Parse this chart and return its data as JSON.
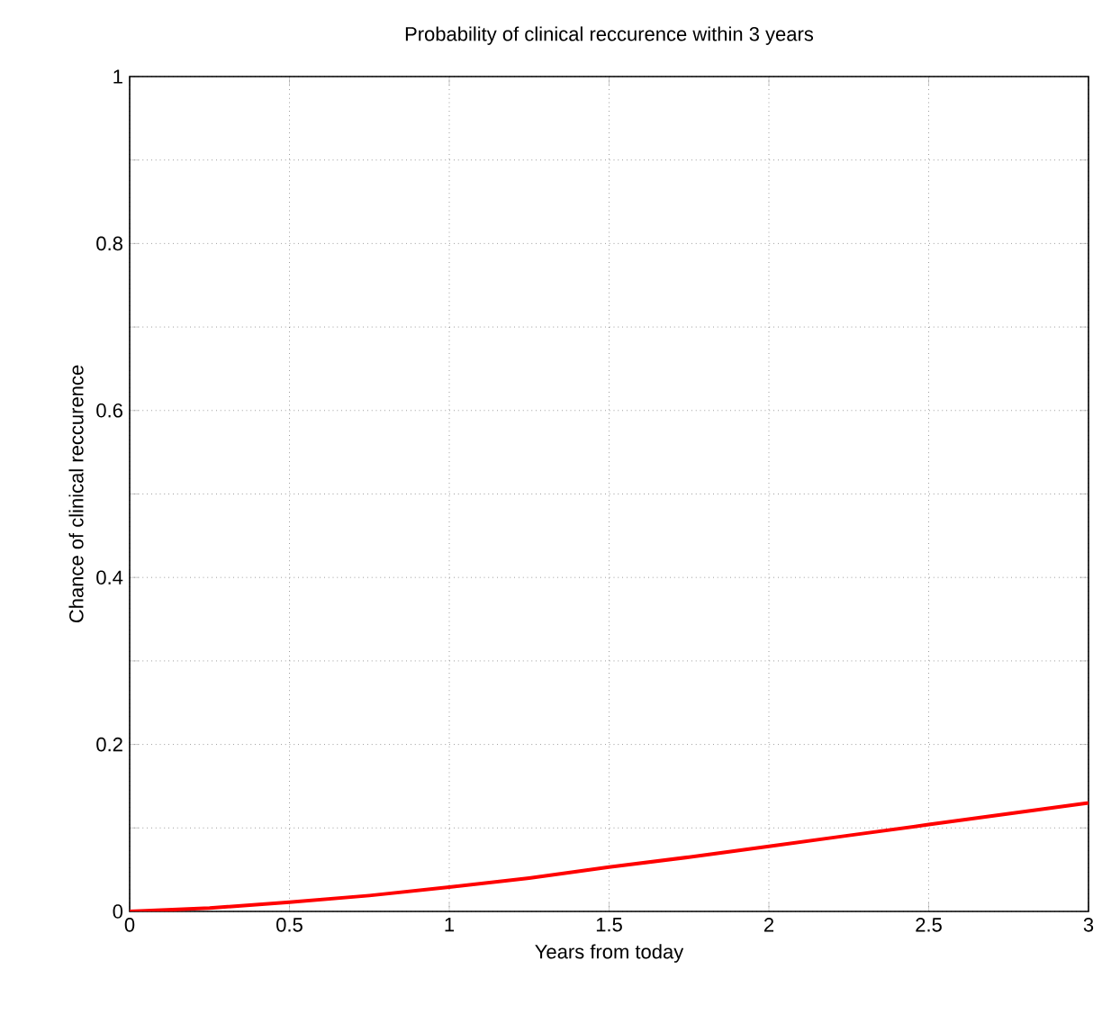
{
  "chart_data": {
    "type": "line",
    "title": "Probability of clinical reccurence within 3 years",
    "xlabel": "Years from today",
    "ylabel": "Chance of clinical reccurence",
    "x": [
      0,
      0.25,
      0.5,
      0.75,
      1,
      1.25,
      1.5,
      1.75,
      2,
      2.25,
      2.5,
      2.75,
      3
    ],
    "series": [
      {
        "color": "#ff0000",
        "values": [
          0,
          0.004,
          0.011,
          0.019,
          0.029,
          0.04,
          0.053,
          0.065,
          0.078,
          0.091,
          0.104,
          0.117,
          0.13
        ]
      }
    ],
    "xlim": [
      0,
      3
    ],
    "ylim": [
      0,
      1
    ],
    "xticks": [
      0,
      0.5,
      1,
      1.5,
      2,
      2.5,
      3
    ],
    "yticks": [
      0,
      {
        "value": 0.1,
        "label": null
      },
      0.2,
      {
        "value": 0.3,
        "label": null
      },
      0.4,
      {
        "value": 0.5,
        "label": null
      },
      0.6,
      {
        "value": 0.7,
        "label": null
      },
      0.8,
      {
        "value": 0.9,
        "label": null
      },
      1
    ],
    "grid": true,
    "marker": "none",
    "line_style": "solid"
  }
}
